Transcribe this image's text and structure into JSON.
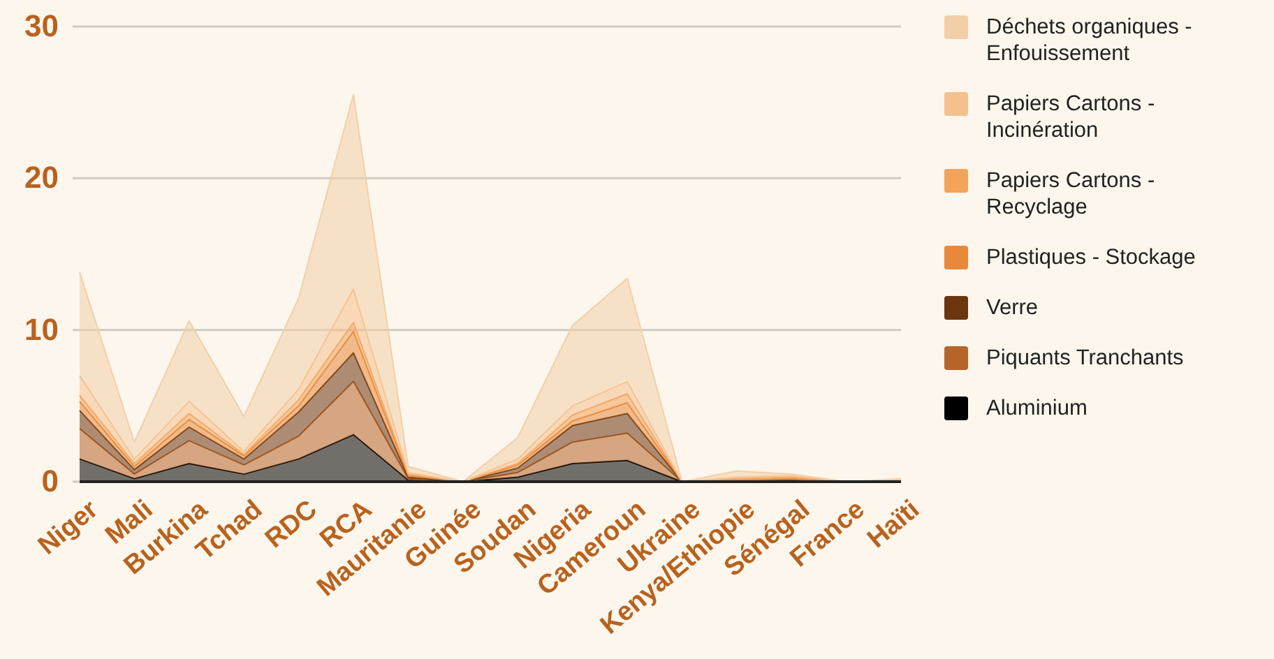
{
  "chart_data": {
    "type": "area",
    "stacked": true,
    "categories": [
      "Niger",
      "Mali",
      "Burkina",
      "Tchad",
      "RDC",
      "RCA",
      "Mauritanie",
      "Guinée",
      "Soudan",
      "Nigeria",
      "Cameroun",
      "Ukraine",
      "Kenya/Ethiopie",
      "Sénégal",
      "France",
      "Haïti"
    ],
    "series": [
      {
        "name": "Aluminium",
        "color": "#000000",
        "values": [
          1.5,
          0.2,
          1.2,
          0.5,
          1.5,
          3.1,
          0.1,
          0,
          0.3,
          1.2,
          1.4,
          0,
          0,
          0,
          0,
          0
        ]
      },
      {
        "name": "Piquants Tranchants",
        "color": "#b5652a",
        "values": [
          2.0,
          0.3,
          1.5,
          0.6,
          1.5,
          3.5,
          0.1,
          0,
          0.3,
          1.4,
          1.8,
          0,
          0,
          0.1,
          0,
          0
        ]
      },
      {
        "name": "Verre",
        "color": "#6b3510",
        "values": [
          1.2,
          0.3,
          0.9,
          0.4,
          1.6,
          1.9,
          0.1,
          0,
          0.3,
          1.1,
          1.3,
          0,
          0.1,
          0,
          0,
          0
        ]
      },
      {
        "name": "Plastiques - Stockage",
        "color": "#e8883a",
        "values": [
          0.6,
          0.2,
          0.5,
          0.2,
          0.4,
          1.4,
          0.1,
          0,
          0.2,
          0.3,
          0.7,
          0,
          0,
          0.1,
          0,
          0.1
        ]
      },
      {
        "name": "Papiers Cartons - Recyclage",
        "color": "#f3a35a",
        "values": [
          0.4,
          0.2,
          0.4,
          0.1,
          0.4,
          0.6,
          0.1,
          0,
          0.1,
          0.4,
          0.6,
          0,
          0.1,
          0.1,
          0,
          0
        ]
      },
      {
        "name": "Papiers Cartons - Incinération",
        "color": "#f5c08e",
        "values": [
          1.3,
          0.3,
          0.8,
          0.2,
          0.7,
          2.2,
          0.1,
          0,
          0.3,
          0.6,
          0.8,
          0,
          0.1,
          0.1,
          0,
          0
        ]
      },
      {
        "name": "Déchets organiques - Enfouissement",
        "color": "#f2cfa8",
        "values": [
          6.8,
          1.1,
          5.3,
          2.3,
          6.0,
          12.8,
          0.4,
          0,
          1.4,
          5.3,
          6.8,
          0,
          0.4,
          0.1,
          0,
          0.1
        ]
      }
    ],
    "ylim": [
      0,
      30
    ],
    "yticks": [
      0,
      10,
      20,
      30
    ],
    "grid": "y",
    "legend": "right"
  }
}
